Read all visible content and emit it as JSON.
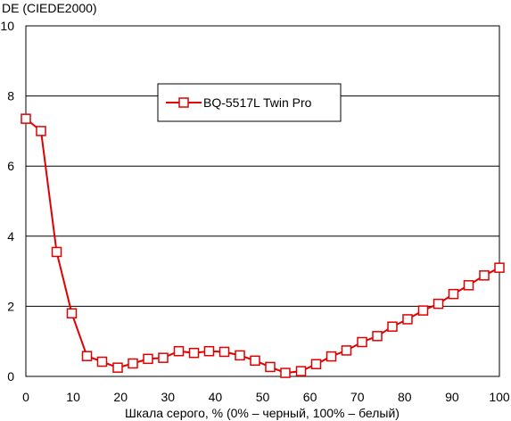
{
  "chart_data": {
    "type": "line",
    "title": "",
    "ylabel": "DE (CIEDE2000)",
    "xlabel": "Шкала серого, % (0% – черный, 100% – белый)",
    "xlim": [
      0,
      100
    ],
    "ylim": [
      0,
      10
    ],
    "x_ticks": [
      0,
      10,
      20,
      30,
      40,
      50,
      60,
      70,
      80,
      90,
      100
    ],
    "y_ticks": [
      0,
      2,
      4,
      6,
      8,
      10
    ],
    "grid": "horizontal",
    "legend_position": "inside-top-center",
    "series": [
      {
        "name": "BQ-5517L Twin Pro",
        "color": "#e00000",
        "marker": "square-open",
        "x": [
          0,
          3.2,
          6.5,
          9.7,
          12.9,
          16.1,
          19.4,
          22.6,
          25.8,
          29.0,
          32.3,
          35.5,
          38.7,
          41.9,
          45.2,
          48.4,
          51.6,
          54.8,
          58.1,
          61.3,
          64.5,
          67.7,
          71.0,
          74.2,
          77.4,
          80.6,
          83.9,
          87.1,
          90.3,
          93.5,
          96.8,
          100
        ],
        "y": [
          7.35,
          7.0,
          3.55,
          1.8,
          0.58,
          0.42,
          0.25,
          0.37,
          0.5,
          0.53,
          0.72,
          0.67,
          0.72,
          0.7,
          0.6,
          0.45,
          0.27,
          0.1,
          0.15,
          0.35,
          0.57,
          0.74,
          0.98,
          1.15,
          1.42,
          1.63,
          1.88,
          2.07,
          2.35,
          2.6,
          2.88,
          3.1
        ]
      }
    ]
  }
}
